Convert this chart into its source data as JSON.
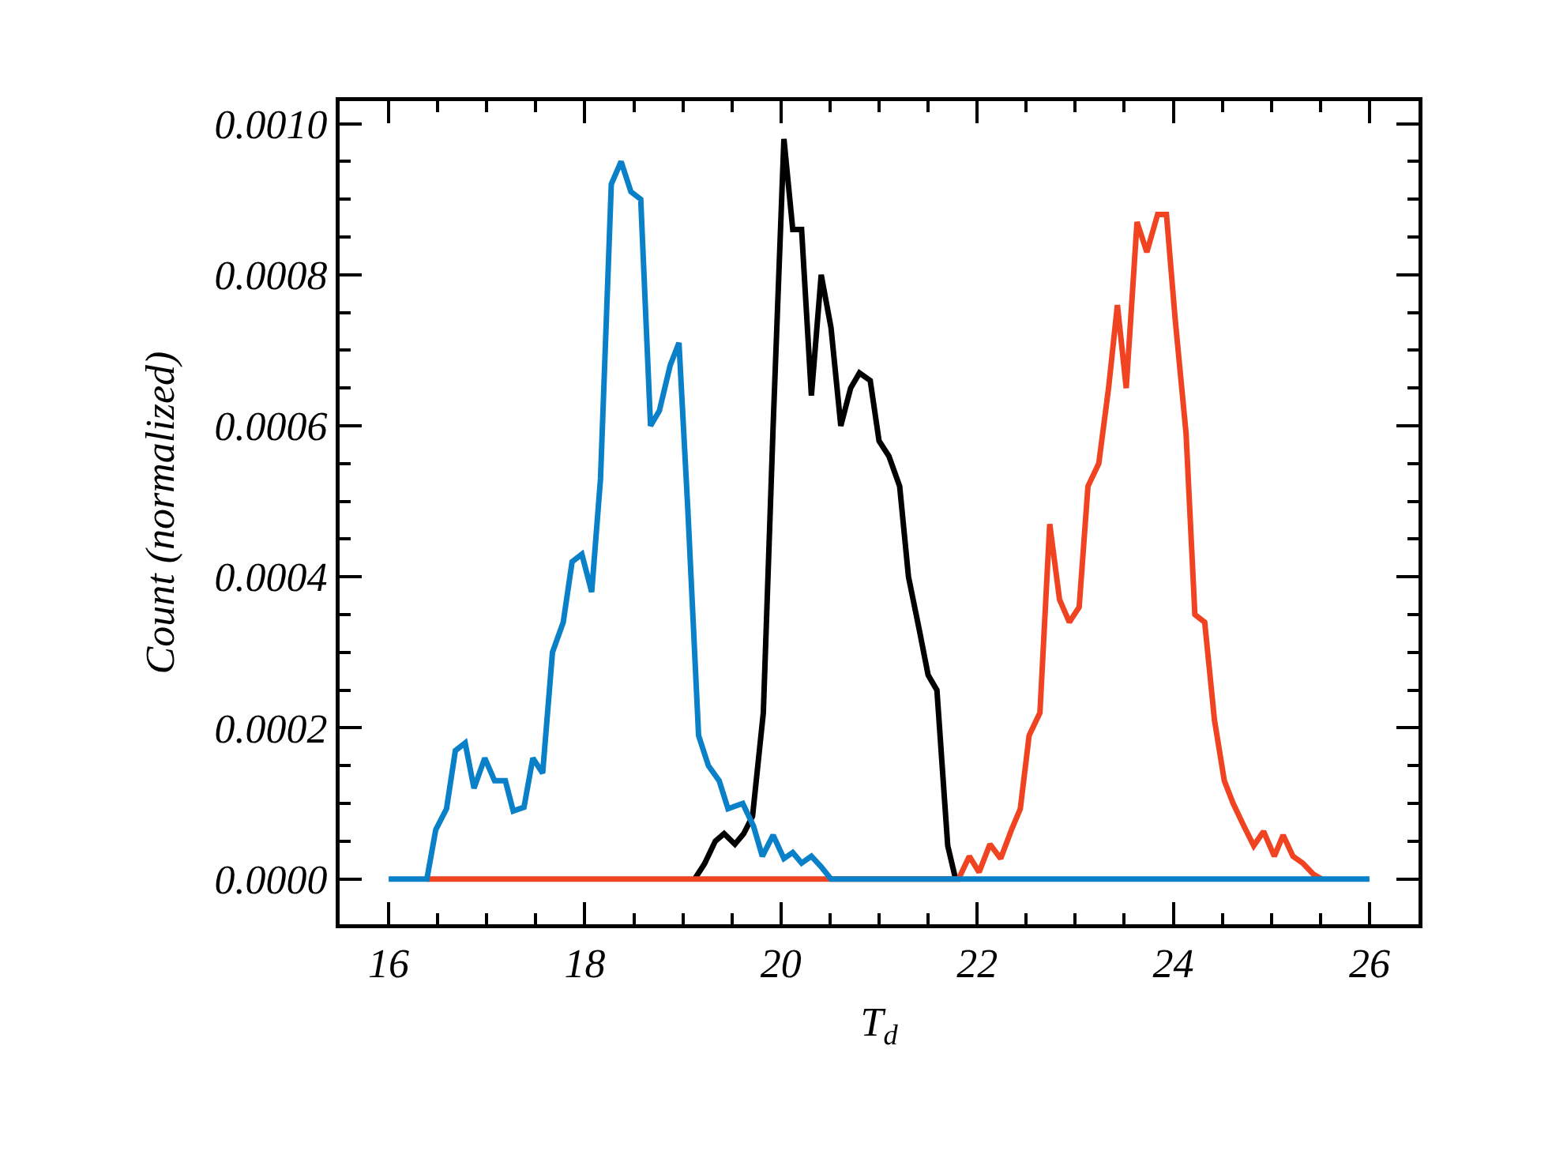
{
  "chart_data": {
    "type": "line",
    "xlabel": "T$_{d}$",
    "ylabel": "Count (normalized)",
    "xlim": [
      15.5,
      26.5
    ],
    "ylim": [
      -6e-05,
      0.00103
    ],
    "xticks": [
      16,
      {
        "value": 16.5,
        "label": null
      },
      {
        "value": 17,
        "label": null
      },
      {
        "value": 17.5,
        "label": null
      },
      18,
      {
        "value": 18.5,
        "label": null
      },
      {
        "value": 19,
        "label": null
      },
      {
        "value": 19.5,
        "label": null
      },
      20,
      {
        "value": 20.5,
        "label": null
      },
      {
        "value": 21,
        "label": null
      },
      {
        "value": 21.5,
        "label": null
      },
      22,
      {
        "value": 22.5,
        "label": null
      },
      {
        "value": 23,
        "label": null
      },
      {
        "value": 23.5,
        "label": null
      },
      24,
      {
        "value": 24.5,
        "label": null
      },
      {
        "value": 25,
        "label": null
      },
      {
        "value": 25.5,
        "label": null
      },
      26
    ],
    "yticks": [
      {
        "value": 0,
        "label": "0.0000"
      },
      {
        "value": 5e-05,
        "label": null
      },
      {
        "value": 0.0001,
        "label": null
      },
      {
        "value": 0.00015,
        "label": null
      },
      {
        "value": 0.0002,
        "label": "0.0002"
      },
      {
        "value": 0.00025,
        "label": null
      },
      {
        "value": 0.0003,
        "label": null
      },
      {
        "value": 0.00035,
        "label": null
      },
      {
        "value": 0.0004,
        "label": "0.0004"
      },
      {
        "value": 0.00045,
        "label": null
      },
      {
        "value": 0.0005,
        "label": null
      },
      {
        "value": 0.00055,
        "label": null
      },
      {
        "value": 0.0006,
        "label": "0.0006"
      },
      {
        "value": 0.00065,
        "label": null
      },
      {
        "value": 0.0007,
        "label": null
      },
      {
        "value": 0.00075,
        "label": null
      },
      {
        "value": 0.0008,
        "label": "0.0008"
      },
      {
        "value": 0.00085,
        "label": null
      },
      {
        "value": 0.0009,
        "label": null
      },
      {
        "value": 0.00095,
        "label": null
      },
      {
        "value": 0.001,
        "label": "0.0010"
      }
    ],
    "marker": "none",
    "line_style": "solid",
    "series": [
      {
        "color": "#000000",
        "x": [
          19.12,
          19.22,
          19.33,
          19.42,
          19.53,
          19.62,
          19.71,
          19.82,
          19.92,
          20.03,
          20.12,
          20.21,
          20.31,
          20.41,
          20.51,
          20.61,
          20.71,
          20.8,
          20.91,
          21.0,
          21.1,
          21.21,
          21.3,
          21.41,
          21.5,
          21.59,
          21.7,
          21.78
        ],
        "values": [
          0,
          2e-05,
          5e-05,
          6e-05,
          4.6e-05,
          6e-05,
          8.3e-05,
          0.00022,
          0.0006,
          0.00098,
          0.00086,
          0.00086,
          0.00064,
          0.0008,
          0.00073,
          0.0006,
          0.00065,
          0.00067,
          0.00066,
          0.00058,
          0.00056,
          0.00052,
          0.0004,
          0.00033,
          0.00027,
          0.00025,
          4.4e-05,
          0
        ]
      },
      {
        "color": "#f04321",
        "x": [
          16.39,
          21.81,
          21.92,
          22.02,
          22.13,
          22.24,
          22.35,
          22.44,
          22.53,
          22.64,
          22.74,
          22.84,
          22.94,
          23.04,
          23.13,
          23.24,
          23.34,
          23.43,
          23.52,
          23.63,
          23.73,
          23.84,
          23.93,
          24.02,
          24.13,
          24.22,
          24.32,
          24.42,
          24.52,
          24.61,
          24.72,
          24.82,
          24.92,
          25.03,
          25.12,
          25.22,
          25.32,
          25.43,
          25.51
        ],
        "values": [
          0,
          0,
          3e-05,
          9e-06,
          4.6e-05,
          2.7e-05,
          6.5e-05,
          9.3e-05,
          0.00019,
          0.00022,
          0.00047,
          0.00037,
          0.00034,
          0.00036,
          0.00052,
          0.00055,
          0.00065,
          0.00076,
          0.00065,
          0.00087,
          0.00083,
          0.00088,
          0.00088,
          0.00074,
          0.00059,
          0.00035,
          0.00034,
          0.00021,
          0.00013,
          0.0001,
          7e-05,
          4.4e-05,
          6.3e-05,
          3e-05,
          5.8e-05,
          3e-05,
          2.1e-05,
          6e-06,
          0
        ]
      },
      {
        "color": "#0a80c8",
        "x": [
          16.0,
          16.39,
          16.48,
          16.59,
          16.68,
          16.78,
          16.87,
          16.98,
          17.08,
          17.19,
          17.27,
          17.38,
          17.47,
          17.57,
          17.67,
          17.78,
          17.87,
          17.97,
          18.07,
          18.16,
          18.27,
          18.37,
          18.47,
          18.57,
          18.67,
          18.76,
          18.87,
          18.96,
          19.05,
          19.16,
          19.26,
          19.37,
          19.46,
          19.61,
          19.72,
          19.81,
          19.92,
          20.03,
          20.12,
          20.21,
          20.31,
          20.41,
          20.51,
          26.0
        ],
        "values": [
          0,
          0,
          6.5e-05,
          9.3e-05,
          0.00017,
          0.00018,
          0.00012,
          0.00016,
          0.00013,
          0.00013,
          9e-05,
          9.5e-05,
          0.00016,
          0.00014,
          0.0003,
          0.00034,
          0.00042,
          0.00043,
          0.00038,
          0.00053,
          0.00092,
          0.00095,
          0.00091,
          0.0009,
          0.0006,
          0.00062,
          0.00068,
          0.00071,
          0.00049,
          0.00019,
          0.00015,
          0.00013,
          9.3e-05,
          0.0001,
          7e-05,
          3e-05,
          5.8e-05,
          2.7e-05,
          3.5e-05,
          2.1e-05,
          3e-05,
          1.6e-05,
          0,
          0
        ]
      }
    ]
  }
}
